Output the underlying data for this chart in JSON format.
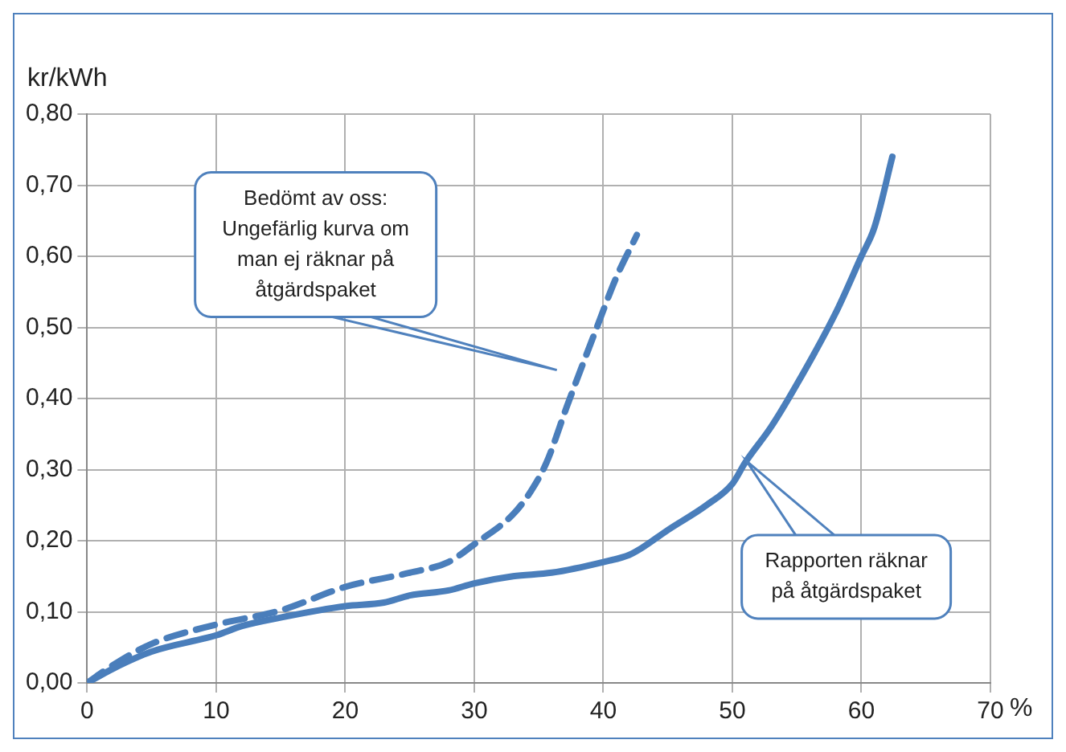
{
  "chart_data": {
    "type": "line",
    "xlabel": "%",
    "ylabel": "kr/kWh",
    "xlim": [
      0,
      70
    ],
    "xticks": [
      0,
      10,
      20,
      30,
      40,
      50,
      60,
      70
    ],
    "ylim": [
      0,
      0.8
    ],
    "yticks": [
      {
        "value": 0,
        "label": "0,00"
      },
      {
        "value": 0.1,
        "label": "0,10"
      },
      {
        "value": 0.2,
        "label": "0,20"
      },
      {
        "value": 0.3,
        "label": "0,30"
      },
      {
        "value": 0.4,
        "label": "0,40"
      },
      {
        "value": 0.5,
        "label": "0,50"
      },
      {
        "value": 0.6,
        "label": "0,60"
      },
      {
        "value": 0.7,
        "label": "0,70"
      },
      {
        "value": 0.8,
        "label": "0,80"
      }
    ],
    "grid": true,
    "legend": false,
    "marker": "none",
    "series": [
      {
        "color": "#4a7ebb",
        "line_style": "solid",
        "x": [
          0,
          2,
          5,
          10,
          12,
          15,
          20,
          23,
          25,
          28,
          30,
          33,
          36,
          40,
          42,
          43,
          45,
          48,
          50,
          51,
          53,
          55,
          58,
          60,
          61,
          62.4
        ],
        "values": [
          0,
          0.02,
          0.044,
          0.067,
          0.08,
          0.092,
          0.108,
          0.113,
          0.123,
          0.13,
          0.14,
          0.15,
          0.155,
          0.17,
          0.18,
          0.19,
          0.215,
          0.25,
          0.28,
          0.31,
          0.36,
          0.42,
          0.52,
          0.6,
          0.64,
          0.74
        ]
      },
      {
        "color": "#4a7ebb",
        "line_style": "dashed",
        "x": [
          0,
          2,
          5,
          10,
          15,
          20,
          25,
          28,
          30,
          33,
          34.4,
          35.6,
          37.2,
          39.5,
          41,
          42.6
        ],
        "values": [
          0,
          0.025,
          0.055,
          0.082,
          0.102,
          0.135,
          0.155,
          0.17,
          0.195,
          0.237,
          0.27,
          0.31,
          0.39,
          0.5,
          0.57,
          0.63
        ]
      }
    ],
    "annotations": [
      "Bedömt av oss: Ungefärlig kurva om man ej räknar på åtgärdspaket",
      "Rapporten räknar på åtgärdspaket"
    ]
  }
}
